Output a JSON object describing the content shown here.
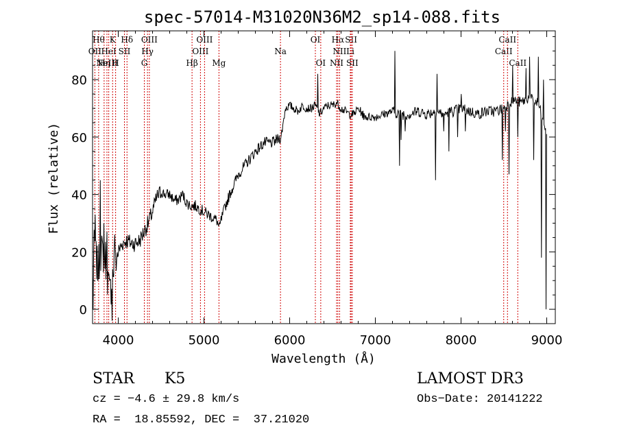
{
  "chart_data": {
    "type": "line",
    "title": "spec-57014-M31020N36M2_sp14-088.fits",
    "xlabel": "Wavelength (Å)",
    "ylabel": "Flux (relative)",
    "xlim": [
      3700,
      9100
    ],
    "ylim": [
      -5,
      97
    ],
    "xticks": [
      4000,
      5000,
      6000,
      7000,
      8000,
      9000
    ],
    "yticks": [
      0,
      20,
      40,
      60,
      80
    ],
    "grid": false,
    "anchors": [
      [
        3700,
        10
      ],
      [
        3720,
        22
      ],
      [
        3760,
        14
      ],
      [
        3800,
        20
      ],
      [
        3850,
        18
      ],
      [
        3900,
        5
      ],
      [
        3950,
        15
      ],
      [
        4000,
        20
      ],
      [
        4050,
        23
      ],
      [
        4100,
        24
      ],
      [
        4150,
        23
      ],
      [
        4200,
        23
      ],
      [
        4250,
        24
      ],
      [
        4300,
        27
      ],
      [
        4350,
        30
      ],
      [
        4400,
        34
      ],
      [
        4450,
        39
      ],
      [
        4500,
        41
      ],
      [
        4550,
        40
      ],
      [
        4600,
        40
      ],
      [
        4650,
        38
      ],
      [
        4700,
        38
      ],
      [
        4750,
        40
      ],
      [
        4800,
        37
      ],
      [
        4850,
        36
      ],
      [
        4900,
        36
      ],
      [
        4950,
        35
      ],
      [
        5000,
        34
      ],
      [
        5050,
        33
      ],
      [
        5100,
        32
      ],
      [
        5150,
        31
      ],
      [
        5180,
        28
      ],
      [
        5200,
        31
      ],
      [
        5250,
        36
      ],
      [
        5300,
        40
      ],
      [
        5400,
        47
      ],
      [
        5500,
        51
      ],
      [
        5600,
        55
      ],
      [
        5700,
        58
      ],
      [
        5800,
        58
      ],
      [
        5850,
        59
      ],
      [
        5900,
        60
      ],
      [
        5950,
        70
      ],
      [
        6000,
        71
      ],
      [
        6050,
        70
      ],
      [
        6100,
        69
      ],
      [
        6150,
        71
      ],
      [
        6200,
        70
      ],
      [
        6250,
        70
      ],
      [
        6300,
        71
      ],
      [
        6350,
        68
      ],
      [
        6400,
        70
      ],
      [
        6450,
        71
      ],
      [
        6500,
        71
      ],
      [
        6550,
        72
      ],
      [
        6600,
        70
      ],
      [
        6650,
        69
      ],
      [
        6700,
        68
      ],
      [
        6750,
        68
      ],
      [
        6800,
        70
      ],
      [
        6850,
        68
      ],
      [
        6900,
        67
      ],
      [
        6950,
        67
      ],
      [
        7000,
        67
      ],
      [
        7100,
        68
      ],
      [
        7200,
        69
      ],
      [
        7300,
        68
      ],
      [
        7400,
        68
      ],
      [
        7500,
        69
      ],
      [
        7600,
        68
      ],
      [
        7700,
        69
      ],
      [
        7800,
        68
      ],
      [
        7900,
        69
      ],
      [
        8000,
        70
      ],
      [
        8100,
        69
      ],
      [
        8200,
        68
      ],
      [
        8300,
        69
      ],
      [
        8400,
        69
      ],
      [
        8500,
        70
      ],
      [
        8600,
        73
      ],
      [
        8700,
        72
      ],
      [
        8800,
        74
      ],
      [
        8850,
        72
      ],
      [
        8900,
        72
      ],
      [
        8950,
        66
      ],
      [
        9000,
        62
      ]
    ],
    "spikes": [
      [
        3705,
        0
      ],
      [
        3730,
        33
      ],
      [
        3790,
        45
      ],
      [
        3830,
        30
      ],
      [
        3870,
        27
      ],
      [
        3930,
        -4
      ],
      [
        3960,
        26
      ],
      [
        6330,
        82
      ],
      [
        6860,
        66
      ],
      [
        7230,
        90
      ],
      [
        7280,
        50
      ],
      [
        7300,
        59
      ],
      [
        7350,
        62
      ],
      [
        7700,
        45
      ],
      [
        7720,
        82
      ],
      [
        7800,
        62
      ],
      [
        7860,
        55
      ],
      [
        7960,
        60
      ],
      [
        8000,
        75
      ],
      [
        8050,
        62
      ],
      [
        8480,
        52
      ],
      [
        8520,
        62
      ],
      [
        8560,
        47
      ],
      [
        8600,
        85
      ],
      [
        8660,
        60
      ],
      [
        8760,
        84
      ],
      [
        8800,
        88
      ],
      [
        8850,
        52
      ],
      [
        8900,
        88
      ],
      [
        8940,
        18
      ],
      [
        8960,
        80
      ],
      [
        8990,
        0
      ]
    ],
    "line_markers": [
      {
        "wl": 3771,
        "label": "Hθ",
        "row": 1
      },
      {
        "wl": 3727,
        "label": "OII",
        "row": 2
      },
      {
        "wl": 3835,
        "label": "Hη",
        "row": 3
      },
      {
        "wl": 3868,
        "label": "NeIII",
        "row": 3
      },
      {
        "wl": 3889,
        "label": "HeI",
        "row": 2
      },
      {
        "wl": 3934,
        "label": "K",
        "row": 1
      },
      {
        "wl": 3969,
        "label": "H",
        "row": 3
      },
      {
        "wl": 4072,
        "label": "SII",
        "row": 2
      },
      {
        "wl": 4102,
        "label": "Hδ",
        "row": 1
      },
      {
        "wl": 4304,
        "label": "G",
        "row": 3
      },
      {
        "wl": 4341,
        "label": "Hγ",
        "row": 2
      },
      {
        "wl": 4363,
        "label": "OIII",
        "row": 1
      },
      {
        "wl": 4861,
        "label": "Hβ",
        "row": 3
      },
      {
        "wl": 4959,
        "label": "OIII",
        "row": 2
      },
      {
        "wl": 5007,
        "label": "OIII",
        "row": 1
      },
      {
        "wl": 5175,
        "label": "Mg",
        "row": 3
      },
      {
        "wl": 5893,
        "label": "Na",
        "row": 2
      },
      {
        "wl": 6300,
        "label": "OI",
        "row": 1
      },
      {
        "wl": 6363,
        "label": "OI",
        "row": 3
      },
      {
        "wl": 6548,
        "label": "NII",
        "row": 3
      },
      {
        "wl": 6563,
        "label": "Hα",
        "row": 1
      },
      {
        "wl": 6583,
        "label": "NII",
        "row": 2
      },
      {
        "wl": 6708,
        "label": "Li",
        "row": 2
      },
      {
        "wl": 6717,
        "label": "SII",
        "row": 1
      },
      {
        "wl": 6731,
        "label": "SII",
        "row": 3
      },
      {
        "wl": 8498,
        "label": "CaII",
        "row": 2
      },
      {
        "wl": 8542,
        "label": "CaII",
        "row": 1
      },
      {
        "wl": 8662,
        "label": "CaII",
        "row": 3
      }
    ]
  },
  "info": {
    "object_class": "STAR",
    "subclass": "K5",
    "survey": "LAMOST DR3",
    "redshift": "cz = −4.6 ± 29.8 km/s",
    "obs_date": "Obs−Date: 20141222",
    "coords": "RA =  18.85592, DEC =  37.21020"
  }
}
